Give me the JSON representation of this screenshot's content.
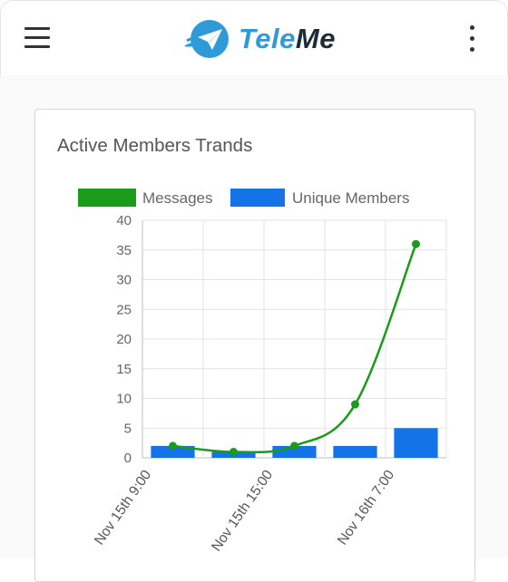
{
  "header": {
    "brand_tele": "Tele",
    "brand_me": "Me",
    "colors": {
      "brand_blue": "#2f9ad8",
      "brand_dark": "#1c2b3a",
      "icon": "#333333"
    },
    "icons": [
      "menu-icon",
      "paper-plane-icon",
      "more-vertical-icon"
    ]
  },
  "card": {
    "title": "Active Members Trands"
  },
  "chart_data": {
    "type": "bar",
    "title": "",
    "xlabel": "",
    "ylabel": "",
    "categories": [
      "Nov 15th 9:00",
      "",
      "Nov 15th 15:00",
      "",
      "Nov 16th 7:00"
    ],
    "series": [
      {
        "name": "Messages",
        "type": "line",
        "color": "#1a9b1a",
        "values": [
          2,
          1,
          2,
          9,
          36
        ]
      },
      {
        "name": "Unique Members",
        "type": "bar",
        "color": "#1573e8",
        "values": [
          2,
          1,
          2,
          2,
          5
        ]
      }
    ],
    "ylim": [
      0,
      40
    ],
    "yticks": [
      0,
      5,
      10,
      15,
      20,
      25,
      30,
      35,
      40
    ],
    "xtick_labels": [
      "Nov 15th 9:00",
      "Nov 15th 15:00",
      "Nov 16th 7:00"
    ],
    "grid": true,
    "legend_position": "top"
  }
}
